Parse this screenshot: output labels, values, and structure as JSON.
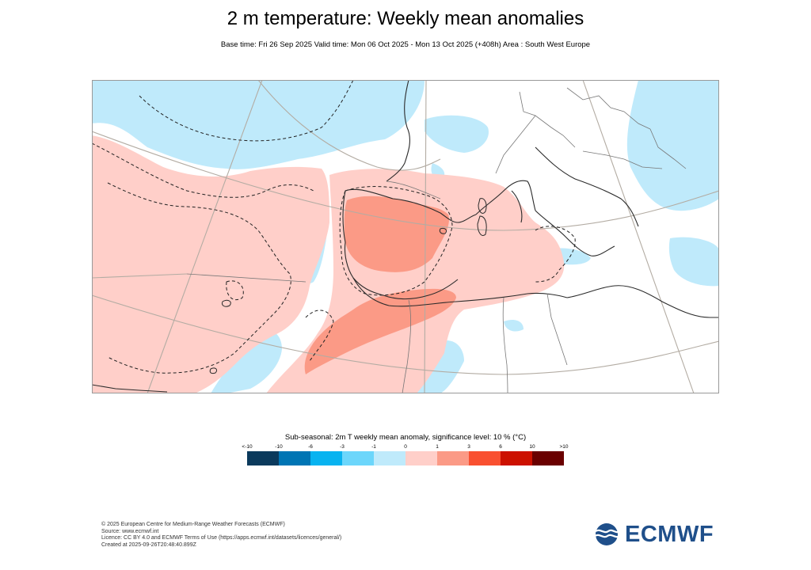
{
  "header": {
    "title": "2 m temperature: Weekly mean anomalies",
    "subtitle": "Base time: Fri 26 Sep 2025 Valid time: Mon 06 Oct 2025 - Mon 13 Oct 2025 (+408h) Area : South West Europe"
  },
  "legend": {
    "title": "Sub-seasonal: 2m T weekly mean anomaly, significance level: 10 % (°C)",
    "ticks": [
      "<-10",
      "-10",
      "-6",
      "-3",
      "-1",
      "0",
      "1",
      "3",
      "6",
      "10",
      ">10"
    ],
    "colors": [
      "#0b3a5c",
      "#0075b4",
      "#08b3f0",
      "#6cd6fb",
      "#bfeafb",
      "#ffcfc9",
      "#fb9a86",
      "#f95030",
      "#cc1100",
      "#6a0000"
    ]
  },
  "map": {
    "anomaly_colors": {
      "cold": "#bfeafb",
      "warm": "#ffcfc9",
      "warm_strong": "#fb9a86"
    }
  },
  "footer": {
    "line1": "© 2025 European Centre for Medium-Range Weather Forecasts (ECMWF)",
    "line2": "Source: www.ecmwf.int",
    "line3": "Licence: CC BY 4.0 and ECMWF Terms of Use (https://apps.ecmwf.int/datasets/licences/general/)",
    "line4": "Created at 2025-09-26T20:48:40.899Z"
  },
  "logo": {
    "text": "ECMWF",
    "icon": "ecmwf-logo-icon"
  }
}
